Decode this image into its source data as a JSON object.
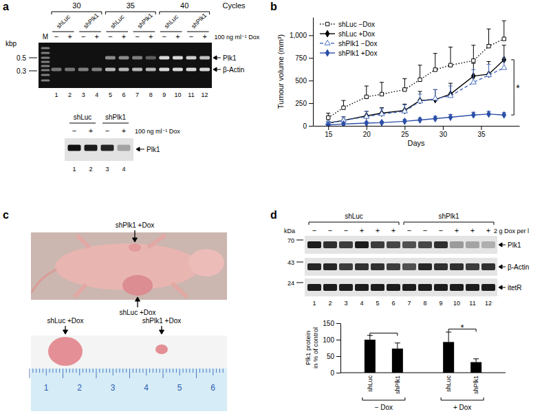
{
  "panel_labels": [
    "a",
    "b",
    "c",
    "d"
  ],
  "gel_a": {
    "cycle_label": "Cycles",
    "cycles": [
      30,
      35,
      40
    ],
    "constructs": [
      "shLuc",
      "shPlk1"
    ],
    "dox_states": [
      "−",
      "+"
    ],
    "dox_label": "100 ng ml⁻¹ Dox",
    "marker_lane": "M",
    "size_unit": "kbp",
    "sizes": [
      0.5,
      0.3
    ],
    "lanes": [
      1,
      2,
      3,
      4,
      5,
      6,
      7,
      8,
      9,
      10,
      11,
      12
    ],
    "bands": [
      "Plk1",
      "β-Actin"
    ]
  },
  "blot_a": {
    "constructs": [
      "shLuc",
      "shPlk1"
    ],
    "dox_states": [
      "−",
      "+"
    ],
    "dox_label": "100 ng ml⁻¹ Dox",
    "lanes": [
      1,
      2,
      3,
      4
    ],
    "band": "Plk1"
  },
  "photo_c": {
    "top_labels": [
      "shPlk1 +Dox",
      "shLuc +Dox"
    ],
    "bottom_labels": [
      "shLuc +Dox",
      "shPlk1 +Dox"
    ],
    "ruler": [
      1,
      2,
      3,
      4,
      5,
      6
    ]
  },
  "blot_d": {
    "constructs": [
      "shLuc",
      "shPlk1"
    ],
    "dox_states": [
      "−",
      "+"
    ],
    "dox_label": "2 g Dox per l",
    "size_unit": "kDa",
    "sizes": [
      70,
      43,
      24
    ],
    "lanes": [
      1,
      2,
      3,
      4,
      5,
      6,
      7,
      8,
      9,
      10,
      11,
      12
    ],
    "bands": [
      "Plk1",
      "β-Actin",
      "itetR"
    ]
  },
  "chart_data": [
    {
      "type": "line",
      "x_label": "Days",
      "y_label": "Tumour volume (mm³)",
      "x": [
        15,
        17,
        20,
        22,
        25,
        27,
        29,
        31,
        34,
        36,
        38
      ],
      "xlim": [
        13,
        40
      ],
      "xticks": [
        15,
        20,
        25,
        30,
        35
      ],
      "ylim": [
        0,
        1200
      ],
      "yticks": [
        0,
        250,
        500,
        750,
        {
          "value": 1000,
          "label": "1,000"
        }
      ],
      "legend": "upper left",
      "series": [
        {
          "name": "shLuc −Dox",
          "color": "#000000",
          "marker": "square-open",
          "line_style": "dotted",
          "values": [
            90,
            200,
            320,
            350,
            400,
            510,
            620,
            670,
            720,
            880,
            960
          ],
          "errors": [
            50,
            80,
            120,
            130,
            120,
            160,
            180,
            200,
            170,
            190,
            200
          ]
        },
        {
          "name": "shLuc +Dox",
          "color": "#000000",
          "marker": "diamond",
          "line_style": "solid",
          "values": [
            30,
            60,
            110,
            140,
            170,
            280,
            290,
            350,
            550,
            570,
            730
          ],
          "errors": [
            20,
            40,
            50,
            60,
            70,
            100,
            110,
            120,
            140,
            140,
            160
          ]
        },
        {
          "name": "shPlk1 −Dox",
          "color": "#4a6fc0",
          "marker": "triangle-open",
          "line_style": "dashed",
          "values": [
            30,
            60,
            100,
            130,
            160,
            270,
            300,
            330,
            480,
            560,
            640
          ],
          "errors": [
            20,
            40,
            60,
            60,
            70,
            80,
            100,
            110,
            140,
            120,
            110
          ]
        },
        {
          "name": "shPlk1 +Dox",
          "color": "#2b4fa8",
          "marker": "diamond",
          "line_style": "solid",
          "values": [
            10,
            20,
            30,
            35,
            50,
            65,
            80,
            95,
            120,
            130,
            120
          ],
          "errors": [
            5,
            10,
            15,
            15,
            20,
            20,
            25,
            30,
            30,
            30,
            25
          ]
        }
      ],
      "annotations": [
        {
          "text": "*",
          "x": 39.3,
          "y1": 120,
          "y2": 730
        }
      ]
    },
    {
      "type": "bar",
      "y_label": [
        "Plk1 protein",
        "in % of control"
      ],
      "categories": [
        "shLuc",
        "shPlk1",
        "shLuc",
        "shPlk1"
      ],
      "group_labels": [
        "− Dox",
        "+ Dox"
      ],
      "values": [
        100,
        73,
        93,
        32
      ],
      "errors": [
        13,
        17,
        30,
        10
      ],
      "color": "#000000",
      "ylim": [
        0,
        150
      ],
      "yticks": [
        0,
        50,
        100,
        150
      ],
      "brackets": [
        {
          "from": 0,
          "to": 1,
          "y": 120
        },
        {
          "from": 2,
          "to": 3,
          "y": 132,
          "text": "*"
        }
      ]
    }
  ]
}
